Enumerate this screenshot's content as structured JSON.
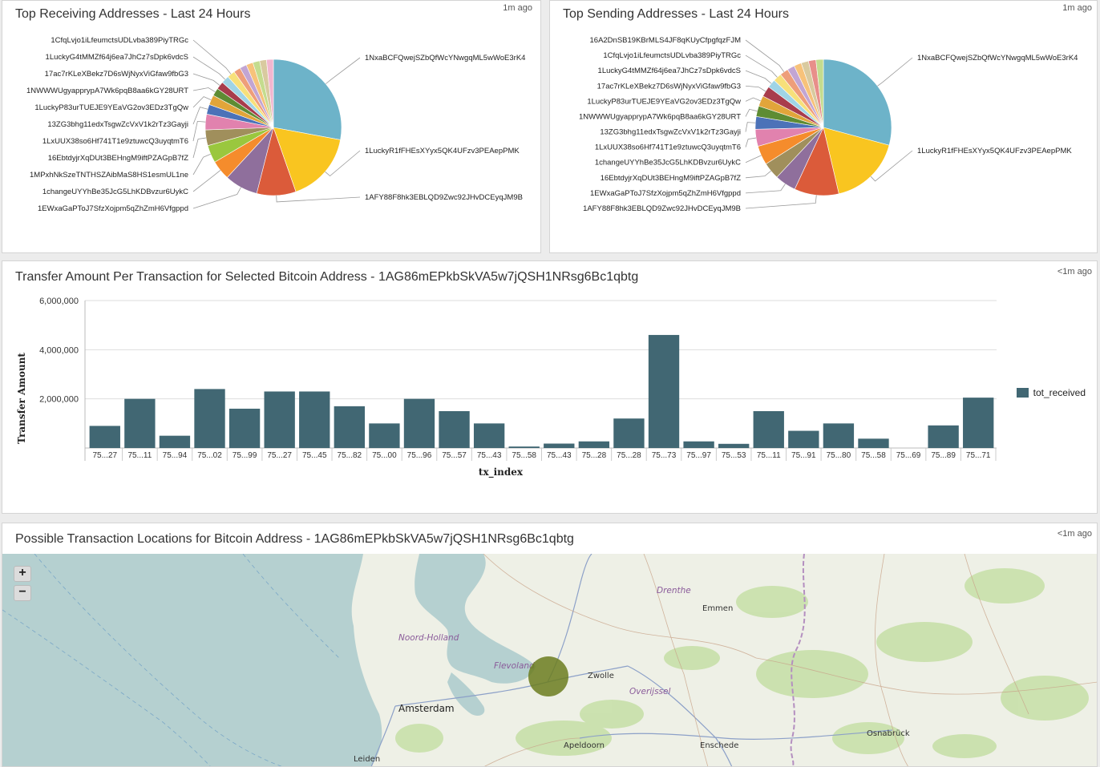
{
  "receiving_panel": {
    "title": "Top Receiving Addresses - Last 24 Hours",
    "time": "1m ago",
    "chart_data": {
      "type": "pie",
      "slices": [
        {
          "label": "1NxaBCFQwejSZbQfWcYNwgqML5wWoE3rK4",
          "value": 60,
          "color": "#6db3c9"
        },
        {
          "label": "1LuckyR1fFHEsXYyx5QK4UFzv3PEAepPMK",
          "value": 36,
          "color": "#f9c520"
        },
        {
          "label": "1AFY88F8hk3EBLQD9Zwc92JHvDCEyqJM9B",
          "value": 20,
          "color": "#db5b3a"
        },
        {
          "label": "1EWxaGaPToJ7SfzXojpm5qZhZmH6Vfgppd",
          "value": 17,
          "color": "#8f6f9c"
        },
        {
          "label": "1changeUYYhBe35JcG5LhKDBvzur6UykC",
          "value": 10,
          "color": "#f58c2c"
        },
        {
          "label": "1MPxhNkSzeTNTHSZAibMaS8HS1esmUL1ne",
          "value": 9,
          "color": "#9ac73e"
        },
        {
          "label": "16EbtdyjrXqDUt3BEHngM9iftPZAGpB7fZ",
          "value": 8,
          "color": "#a08f5c"
        },
        {
          "label": "1LxUUX38so6Hf741T1e9ztuwcQ3uyqtmT6",
          "value": 8,
          "color": "#e182ae"
        },
        {
          "label": "13ZG3bhg11edxTsgwZcVxV1k2rTz3Gayji",
          "value": 5,
          "color": "#4c72b8"
        },
        {
          "label": "1LuckyP83urTUEJE9YEaVG2ov3EDz3TgQw",
          "value": 5,
          "color": "#e1a53a"
        },
        {
          "label": "1NWWWUgyapprypA7Wk6pqB8aa6kGY28URT",
          "value": 4,
          "color": "#5e8c33"
        },
        {
          "label": "17ac7rKLeXBekz7D6sWjNyxViGfaw9fbG3",
          "value": 4,
          "color": "#a83c4c"
        },
        {
          "label": "1LuckyG4tMMZf64j6ea7JhCz7sDpk6vdcS",
          "value": 4,
          "color": "#9fd4e6"
        },
        {
          "label": "1CfqLvjo1iLfeumctsUDLvba389PiyTRGc",
          "value": 4,
          "color": "#f7e07a"
        },
        {
          "label": "",
          "value": 3.5,
          "color": "#ee9e7a"
        },
        {
          "label": "",
          "value": 3.5,
          "color": "#c2a5d3"
        },
        {
          "label": "",
          "value": 3.5,
          "color": "#f7c27a"
        },
        {
          "label": "",
          "value": 3.5,
          "color": "#c4dc8e"
        },
        {
          "label": "",
          "value": 3.5,
          "color": "#d9ca9f"
        },
        {
          "label": "",
          "value": 3.5,
          "color": "#f2b6cf"
        }
      ]
    }
  },
  "sending_panel": {
    "title": "Top Sending Addresses - Last 24 Hours",
    "time": "1m ago",
    "chart_data": {
      "type": "pie",
      "slices": [
        {
          "label": "1NxaBCFQwejSZbQfWcYNwgqML5wWoE3rK4",
          "value": 58,
          "color": "#6db3c9"
        },
        {
          "label": "1LuckyR1fFHEsXYyx5QK4UFzv3PEAepPMK",
          "value": 34,
          "color": "#f9c520"
        },
        {
          "label": "1AFY88F8hk3EBLQD9Zwc92JHvDCEyqJM9B",
          "value": 21,
          "color": "#db5b3a"
        },
        {
          "label": "1EWxaGaPToJ7SfzXojpm5qZhZmH6Vfgppd",
          "value": 10,
          "color": "#8f6f9c"
        },
        {
          "label": "16EbtdyjrXqDUt3BEHngM9iftPZAGpB7fZ",
          "value": 8,
          "color": "#a08f5c"
        },
        {
          "label": "1changeUYYhBe35JcG5LhKDBvzur6UykC",
          "value": 9,
          "color": "#f58c2c"
        },
        {
          "label": "1LxUUX38so6Hf741T1e9ztuwcQ3uyqtmT6",
          "value": 8,
          "color": "#e182ae"
        },
        {
          "label": "13ZG3bhg11edxTsgwZcVxV1k2rTz3Gayji",
          "value": 6,
          "color": "#4c72b8"
        },
        {
          "label": "1NWWWUgyapprypA7Wk6pqB8aa6kGY28URT",
          "value": 5,
          "color": "#5e8c33"
        },
        {
          "label": "1LuckyP83urTUEJE9YEaVG2ov3EDz3TgQw",
          "value": 5,
          "color": "#e1a53a"
        },
        {
          "label": "17ac7rKLeXBekz7D6sWjNyxViGfaw9fbG3",
          "value": 5,
          "color": "#a83c4c"
        },
        {
          "label": "1LuckyG4tMMZf64j6ea7JhCz7sDpk6vdcS",
          "value": 4,
          "color": "#9fd4e6"
        },
        {
          "label": "1CfqLvjo1iLfeumctsUDLvba389PiyTRGc",
          "value": 4,
          "color": "#f7e07a"
        },
        {
          "label": "16A2DnSB19KBrMLS4JF8qKUyCfpgfqzFJM",
          "value": 4,
          "color": "#ee9e7a"
        },
        {
          "label": "",
          "value": 3.5,
          "color": "#c2a5d3"
        },
        {
          "label": "",
          "value": 3.5,
          "color": "#f7c27a"
        },
        {
          "label": "",
          "value": 3.5,
          "color": "#d9ca9f"
        },
        {
          "label": "",
          "value": 3.5,
          "color": "#e88f8a"
        },
        {
          "label": "",
          "value": 3.5,
          "color": "#c4dc8e"
        }
      ]
    }
  },
  "transfer_panel": {
    "title": "Transfer Amount Per Transaction for Selected Bitcoin Address - 1AG86mEPkbSkVA5w7jQSH1NRsg6Bc1qbtg",
    "time": "<1m ago",
    "legend": {
      "label": "tot_received",
      "color": "#416773"
    },
    "chart_data": {
      "type": "bar",
      "xlabel": "tx_index",
      "ylabel": "Transfer Amount",
      "ylim": [
        0,
        6000000
      ],
      "y_ticks": [
        "2,000,000",
        "4,000,000",
        "6,000,000"
      ],
      "categories": [
        "75...27",
        "75...11",
        "75...94",
        "75...02",
        "75...99",
        "75...27",
        "75...45",
        "75...82",
        "75...00",
        "75...96",
        "75...57",
        "75...43",
        "75...58",
        "75...43",
        "75...28",
        "75...28",
        "75...73",
        "75...97",
        "75...53",
        "75...11",
        "75...91",
        "75...80",
        "75...58",
        "75...69",
        "75...89",
        "75...71"
      ],
      "values": [
        900000,
        2000000,
        500000,
        2400000,
        1600000,
        2300000,
        2300000,
        1700000,
        1000000,
        2000000,
        1500000,
        1000000,
        60000,
        180000,
        270000,
        1200000,
        4600000,
        270000,
        170000,
        1500000,
        700000,
        1000000,
        380000,
        0,
        920000,
        2050000
      ],
      "series": [
        {
          "name": "tot_received"
        }
      ]
    }
  },
  "map_panel": {
    "title": "Possible Transaction Locations for Bitcoin Address - 1AG86mEPkbSkVA5w7jQSH1NRsg6Bc1qbtg",
    "time": "<1m ago",
    "zoom_in": "+",
    "zoom_out": "−",
    "labels": {
      "drenthe": "Drenthe",
      "emmen": "Emmen",
      "noord_holland": "Noord-Holland",
      "flevoland": "Flevoland",
      "zwolle": "Zwolle",
      "overijssel": "Overijssel",
      "amsterdam": "Amsterdam",
      "apeldoorn": "Apeldoorn",
      "enschede": "Enschede",
      "osnabruck": "Osnabrück",
      "leiden": "Leiden"
    },
    "marker_color": "#6b7d1f"
  }
}
